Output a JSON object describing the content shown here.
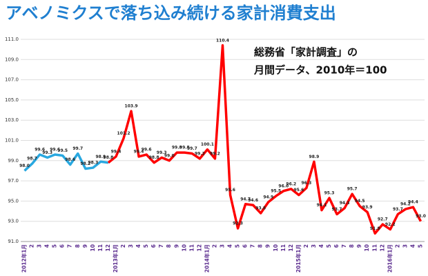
{
  "chart_data": {
    "type": "line",
    "title": "アベノミクスで落ち込み続ける家計消費支出",
    "annotations": [
      "総務省「家計調査」の",
      "月間データ、2010年＝100"
    ],
    "categories": [
      "2012年1月",
      "2",
      "3",
      "4",
      "5",
      "6",
      "7",
      "8",
      "9",
      "10",
      "11",
      "12",
      "2013年1月",
      "2",
      "3",
      "4",
      "5",
      "6",
      "7",
      "8",
      "9",
      "10",
      "11",
      "12",
      "2014年1月",
      "2",
      "3",
      "4",
      "5",
      "6",
      "7",
      "8",
      "9",
      "10",
      "11",
      "12",
      "2015年1月",
      "2",
      "3",
      "4",
      "5",
      "6",
      "7",
      "8",
      "9",
      "10",
      "11",
      "12",
      "2016年1月",
      "2",
      "3",
      "4",
      "5"
    ],
    "ylim": [
      91,
      111
    ],
    "yticks": [
      {
        "value": 91,
        "label": "91.0"
      },
      {
        "value": 93,
        "label": "93.0"
      },
      {
        "value": 95,
        "label": "95.0"
      },
      {
        "value": 97,
        "label": "97.0"
      },
      {
        "value": 99,
        "label": "99.0"
      },
      {
        "value": 101,
        "label": "101.0"
      },
      {
        "value": 103,
        "label": "103.0"
      },
      {
        "value": 105,
        "label": "105.0"
      },
      {
        "value": 107,
        "label": "107.0"
      },
      {
        "value": 109,
        "label": "109.0"
      },
      {
        "value": 111,
        "label": "111.0"
      }
    ],
    "grid": true,
    "series": [
      {
        "color": "#29a8e0",
        "values": [
          98.0,
          98.7,
          99.6,
          99.3,
          99.6,
          99.5,
          98.6,
          99.7,
          98.2,
          98.3,
          98.9,
          98.8,
          null,
          null,
          null,
          null,
          null,
          null,
          null,
          null,
          null,
          null,
          null,
          null,
          null,
          null,
          null,
          null,
          null,
          null,
          null,
          null,
          null,
          null,
          null,
          null,
          null,
          null,
          null,
          null,
          null,
          null,
          null,
          null,
          null,
          null,
          null,
          null,
          null,
          null,
          null,
          null,
          null
        ],
        "value_labels": [
          "98.0",
          "98.7",
          "99.6",
          "99.3",
          "99.6",
          "99.5",
          "98.6",
          "99.7",
          "98.2",
          "98.3",
          "98.9",
          "98.8",
          null,
          null,
          null,
          null,
          null,
          null,
          null,
          null,
          null,
          null,
          null,
          null,
          null,
          null,
          null,
          null,
          null,
          null,
          null,
          null,
          null,
          null,
          null,
          null,
          null,
          null,
          null,
          null,
          null,
          null,
          null,
          null,
          null,
          null,
          null,
          null,
          null,
          null,
          null,
          null,
          null
        ]
      },
      {
        "color": "#ff0000",
        "values": [
          null,
          null,
          null,
          null,
          null,
          null,
          null,
          null,
          null,
          null,
          null,
          98.8,
          99.4,
          101.2,
          103.9,
          99.4,
          99.6,
          98.8,
          99.3,
          99.0,
          99.8,
          99.8,
          99.7,
          99.2,
          100.1,
          99.2,
          110.4,
          95.6,
          92.3,
          94.7,
          94.6,
          93.8,
          94.9,
          95.5,
          96.0,
          96.2,
          95.6,
          96.3,
          98.9,
          94.1,
          95.3,
          93.7,
          94.3,
          95.7,
          94.5,
          93.9,
          91.8,
          92.7,
          92.2,
          93.7,
          94.2,
          94.4,
          93.0
        ],
        "value_labels": [
          null,
          null,
          null,
          null,
          null,
          null,
          null,
          null,
          null,
          null,
          null,
          null,
          "99.4",
          "101.2",
          "103.9",
          "99.4",
          "99.6",
          "98.8",
          "99.3",
          "99.0",
          "99.8",
          "99.8",
          "99.7",
          "99.2",
          "100.1",
          "99.2",
          "110.4",
          "95.6",
          "92.3",
          "94.7",
          "94.6",
          "93.8",
          "94.9",
          "95.5",
          "96.0",
          "96.2",
          "95.6",
          "96.3",
          "98.9",
          "94.1",
          "95.3",
          "93.7",
          "94.3",
          "95.7",
          "94.5",
          "93.9",
          "91.8",
          "92.7",
          "92.2",
          "93.7",
          "94.2",
          "94.4",
          "93.0"
        ]
      }
    ]
  }
}
